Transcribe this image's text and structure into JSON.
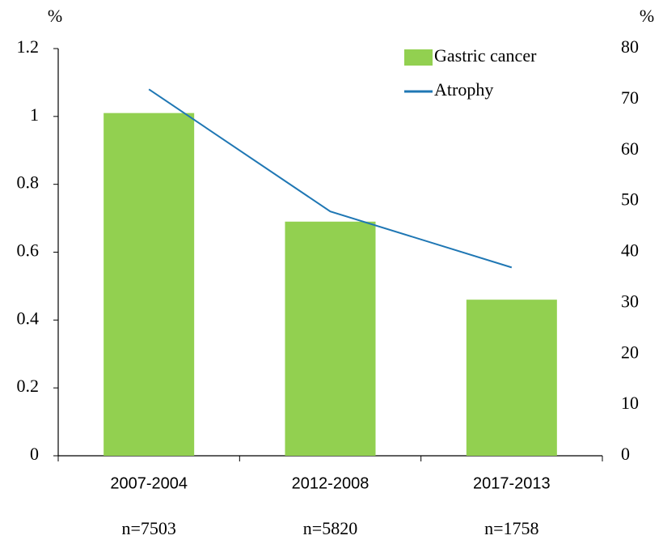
{
  "chart_data": {
    "type": "bar",
    "y_axis_label": "%",
    "y2_axis_label": "%",
    "categories": [
      "2007-2004",
      "2012-2008",
      "2017-2013"
    ],
    "annotations": [
      "n=7503",
      "n=5820",
      "n=1758"
    ],
    "series": [
      {
        "name": "Gastric cancer",
        "type": "bar",
        "color": "#92d050",
        "values": [
          1.01,
          0.69,
          0.46
        ]
      },
      {
        "name": "Atrophy",
        "type": "line",
        "axis": "y2",
        "color": "#1f77b4",
        "values": [
          72,
          48,
          37
        ]
      }
    ],
    "ylim": [
      0,
      1.2
    ],
    "yticks": [
      0,
      0.2,
      0.4,
      0.6,
      0.8,
      1,
      1.2
    ],
    "y2lim": [
      0,
      80
    ],
    "y2ticks": [
      0,
      10,
      20,
      30,
      40,
      50,
      60,
      70,
      80
    ],
    "legend": "top-right"
  }
}
